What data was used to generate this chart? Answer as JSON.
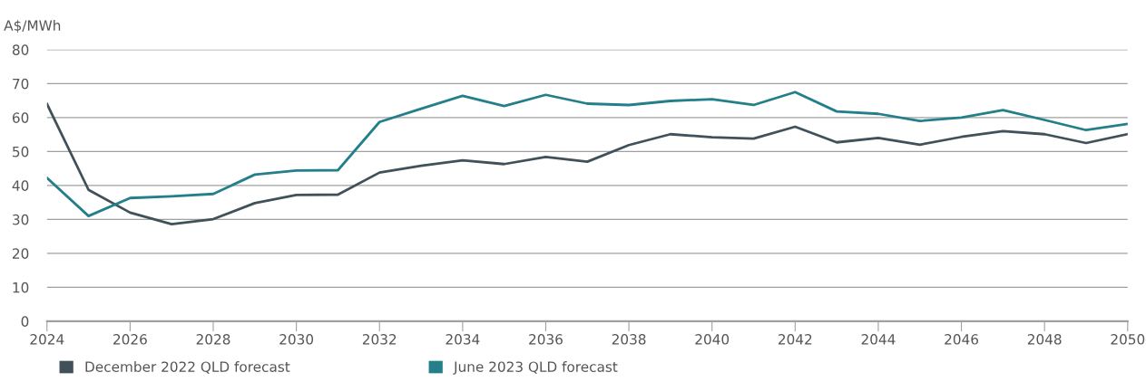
{
  "chart_data": {
    "type": "line",
    "ylabel": "A$/MWh",
    "x": [
      2024,
      2025,
      2026,
      2027,
      2028,
      2029,
      2030,
      2031,
      2032,
      2033,
      2034,
      2035,
      2036,
      2037,
      2038,
      2039,
      2040,
      2041,
      2042,
      2043,
      2044,
      2045,
      2046,
      2047,
      2048,
      2049,
      2050
    ],
    "series": [
      {
        "name": "December 2022 QLD forecast",
        "color": "#41515a",
        "values": [
          64,
          38.7,
          32,
          28.6,
          30.1,
          34.8,
          37.2,
          37.3,
          43.8,
          45.8,
          47.4,
          46.3,
          48.4,
          47,
          51.9,
          55.1,
          54.2,
          53.8,
          57.3,
          52.7,
          54,
          52,
          54.3,
          56,
          55.1,
          52.5,
          55.1
        ]
      },
      {
        "name": "June 2023 QLD forecast",
        "color": "#237f8a",
        "values": [
          42.2,
          31,
          36.3,
          36.8,
          37.5,
          43.2,
          44.4,
          44.5,
          58.7,
          62.6,
          66.4,
          63.4,
          66.7,
          64.1,
          63.7,
          64.9,
          65.4,
          63.7,
          67.5,
          61.8,
          61.1,
          59,
          60,
          62.2,
          59.3,
          56.3,
          58.1
        ]
      }
    ],
    "xlim": [
      2024,
      2050
    ],
    "xticks": [
      2024,
      2026,
      2028,
      2030,
      2032,
      2034,
      2036,
      2038,
      2040,
      2042,
      2044,
      2046,
      2048,
      2050
    ],
    "ylim": [
      0,
      80
    ],
    "yticks": [
      0,
      10,
      20,
      30,
      40,
      50,
      60,
      70,
      80
    ],
    "grid": "y",
    "legend": "bottom",
    "marker": "none",
    "line_style": "solid"
  }
}
